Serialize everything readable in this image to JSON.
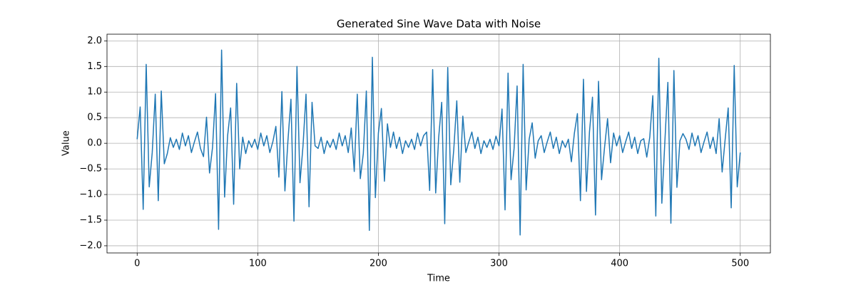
{
  "chart_data": {
    "type": "line",
    "title": "Generated Sine Wave Data with Noise",
    "x_label": "Time",
    "y_label": "Value",
    "x": [
      0,
      2.5,
      5,
      7.5,
      10,
      12.5,
      15,
      17.5,
      20,
      22.5,
      25,
      27.5,
      30,
      32.5,
      35,
      37.5,
      40,
      42.5,
      45,
      47.5,
      50,
      52.5,
      55,
      57.5,
      60,
      62.5,
      65,
      67.5,
      70,
      72.5,
      75,
      77.5,
      80,
      82.5,
      85,
      87.5,
      90,
      92.5,
      95,
      97.5,
      100,
      102.5,
      105,
      107.5,
      110,
      112.5,
      115,
      117.5,
      120,
      122.5,
      125,
      127.5,
      130,
      132.5,
      135,
      137.5,
      140,
      142.5,
      145,
      147.5,
      150,
      152.5,
      155,
      157.5,
      160,
      162.5,
      165,
      167.5,
      170,
      172.5,
      175,
      177.5,
      180,
      182.5,
      185,
      187.5,
      190,
      192.5,
      195,
      197.5,
      200,
      202.5,
      205,
      207.5,
      210,
      212.5,
      215,
      217.5,
      220,
      222.5,
      225,
      227.5,
      230,
      232.5,
      235,
      237.5,
      240,
      242.5,
      245,
      247.5,
      250,
      252.5,
      255,
      257.5,
      260,
      262.5,
      265,
      267.5,
      270,
      272.5,
      275,
      277.5,
      280,
      282.5,
      285,
      287.5,
      290,
      292.5,
      295,
      297.5,
      300,
      302.5,
      305,
      307.5,
      310,
      312.5,
      315,
      317.5,
      320,
      322.5,
      325,
      327.5,
      330,
      332.5,
      335,
      337.5,
      340,
      342.5,
      345,
      347.5,
      350,
      352.5,
      355,
      357.5,
      360,
      362.5,
      365,
      367.5,
      370,
      372.5,
      375,
      377.5,
      380,
      382.5,
      385,
      387.5,
      390,
      392.5,
      395,
      397.5,
      400,
      402.5,
      405,
      407.5,
      410,
      412.5,
      415,
      417.5,
      420,
      422.5,
      425,
      427.5,
      430,
      432.5,
      435,
      437.5,
      440,
      442.5,
      445,
      447.5,
      450,
      452.5,
      455,
      457.5,
      460,
      462.5,
      465,
      467.5,
      470,
      472.5,
      475,
      477.5,
      480,
      482.5,
      485,
      487.5,
      490,
      492.5,
      495,
      497.5,
      500
    ],
    "series": [
      {
        "name": "Value",
        "color": "#1f77b4",
        "values": [
          0.08,
          0.71,
          -1.29,
          1.54,
          -0.85,
          -0.18,
          0.96,
          -1.12,
          1.02,
          -0.4,
          -0.2,
          0.11,
          -0.08,
          0.08,
          -0.12,
          0.2,
          -0.05,
          0.15,
          -0.18,
          0.03,
          0.22,
          -0.1,
          -0.26,
          0.51,
          -0.58,
          -0.08,
          0.97,
          -1.68,
          1.82,
          -1.05,
          0.15,
          0.69,
          -1.19,
          1.17,
          -0.5,
          0.12,
          -0.2,
          0.05,
          -0.08,
          0.08,
          -0.12,
          0.2,
          -0.05,
          0.15,
          -0.18,
          0.03,
          0.33,
          -0.66,
          1.01,
          -0.93,
          0.05,
          0.86,
          -1.52,
          1.5,
          -0.77,
          -0.05,
          0.96,
          -1.24,
          0.8,
          -0.05,
          -0.1,
          0.12,
          -0.2,
          0.05,
          -0.08,
          0.08,
          -0.12,
          0.2,
          -0.05,
          0.15,
          -0.18,
          0.3,
          -0.55,
          0.96,
          -0.69,
          -0.2,
          1.02,
          -1.7,
          1.68,
          -1.06,
          0.2,
          0.68,
          -0.74,
          0.38,
          -0.08,
          0.22,
          -0.1,
          0.12,
          -0.2,
          0.05,
          -0.08,
          0.08,
          -0.12,
          0.2,
          -0.05,
          0.15,
          0.22,
          -0.92,
          1.44,
          -0.97,
          0.12,
          0.8,
          -1.57,
          1.48,
          -0.81,
          -0.12,
          0.83,
          -0.76,
          0.53,
          -0.18,
          0.03,
          0.22,
          -0.1,
          0.12,
          -0.2,
          0.05,
          -0.08,
          0.08,
          -0.12,
          0.14,
          -0.05,
          0.67,
          -1.3,
          1.37,
          -0.71,
          -0.1,
          1.12,
          -1.79,
          1.54,
          -0.91,
          0.08,
          0.4,
          -0.29,
          0.05,
          0.15,
          -0.18,
          0.03,
          0.22,
          -0.1,
          0.12,
          -0.2,
          0.05,
          -0.08,
          0.08,
          -0.36,
          0.2,
          0.58,
          -1.12,
          1.25,
          -0.94,
          0.22,
          0.9,
          -1.4,
          1.21,
          -0.71,
          -0.08,
          0.48,
          -0.38,
          0.2,
          -0.05,
          0.15,
          -0.18,
          0.03,
          0.22,
          -0.1,
          0.12,
          -0.2,
          0.05,
          0.09,
          -0.27,
          0.12,
          0.93,
          -1.42,
          1.66,
          -1.17,
          0.03,
          1.19,
          -1.56,
          1.42,
          -0.86,
          0.05,
          0.19,
          0.08,
          -0.12,
          0.2,
          -0.05,
          0.15,
          -0.18,
          0.03,
          0.22,
          -0.1,
          0.12,
          -0.2,
          0.48,
          -0.56,
          0.08,
          0.69,
          -1.26,
          1.52,
          -0.85,
          -0.18
        ]
      }
    ],
    "xlim": [
      -25,
      525
    ],
    "ylim": [
      -2.14,
      2.13
    ],
    "xticks": [
      0,
      100,
      200,
      300,
      400,
      500
    ],
    "yticks": [
      {
        "value": -2,
        "label": "−2.0"
      },
      {
        "value": -1.5,
        "label": "−1.5"
      },
      {
        "value": -1,
        "label": "−1.0"
      },
      {
        "value": -0.5,
        "label": "−0.5"
      },
      {
        "value": 0,
        "label": "0.0"
      },
      {
        "value": 0.5,
        "label": "0.5"
      },
      {
        "value": 1,
        "label": "1.0"
      },
      {
        "value": 1.5,
        "label": "1.5"
      },
      {
        "value": 2,
        "label": "2.0"
      }
    ],
    "grid": true
  }
}
